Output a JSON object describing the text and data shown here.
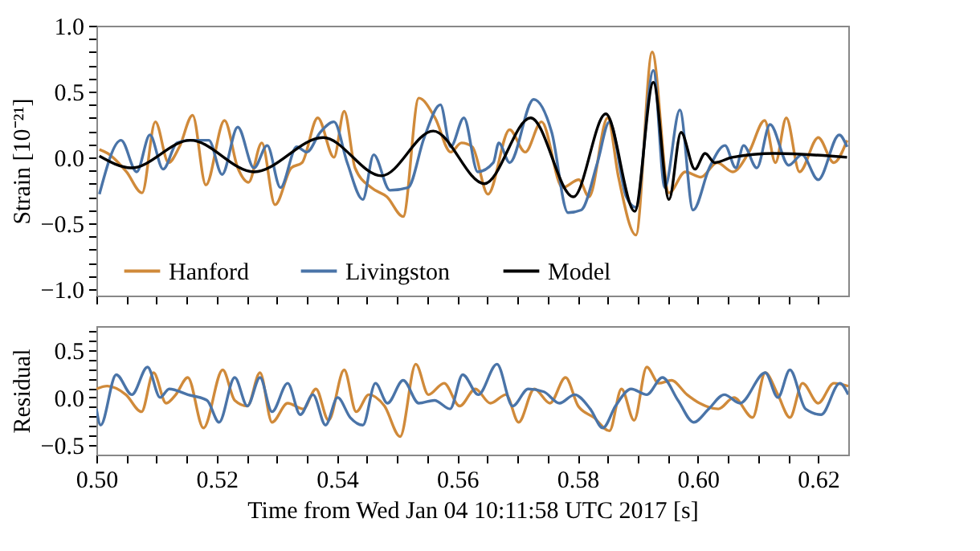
{
  "chart_data": [
    {
      "type": "line",
      "ylabel": "Strain [10⁻²¹]",
      "legend": "bottom",
      "tick_labels": "y",
      "line_style": "solid",
      "marker": "none",
      "xlim": [
        0.5,
        0.625
      ],
      "ylim": [
        -1.05,
        1.0
      ],
      "xticks": [
        {
          "value": 0.5,
          "label": null
        },
        {
          "value": 0.505,
          "label": null
        },
        {
          "value": 0.51,
          "label": null
        },
        {
          "value": 0.515,
          "label": null
        },
        {
          "value": 0.52,
          "label": null
        },
        {
          "value": 0.525,
          "label": null
        },
        {
          "value": 0.53,
          "label": null
        },
        {
          "value": 0.535,
          "label": null
        },
        {
          "value": 0.54,
          "label": null
        },
        {
          "value": 0.545,
          "label": null
        },
        {
          "value": 0.55,
          "label": null
        },
        {
          "value": 0.555,
          "label": null
        },
        {
          "value": 0.56,
          "label": null
        },
        {
          "value": 0.565,
          "label": null
        },
        {
          "value": 0.57,
          "label": null
        },
        {
          "value": 0.575,
          "label": null
        },
        {
          "value": 0.58,
          "label": null
        },
        {
          "value": 0.585,
          "label": null
        },
        {
          "value": 0.59,
          "label": null
        },
        {
          "value": 0.595,
          "label": null
        },
        {
          "value": 0.6,
          "label": null
        },
        {
          "value": 0.605,
          "label": null
        },
        {
          "value": 0.61,
          "label": null
        },
        {
          "value": 0.615,
          "label": null
        },
        {
          "value": 0.62,
          "label": null
        }
      ],
      "yticks": [
        {
          "value": -1,
          "label": "−1.0"
        },
        {
          "value": -0.9,
          "label": null
        },
        {
          "value": -0.8,
          "label": null
        },
        {
          "value": -0.7,
          "label": null
        },
        {
          "value": -0.6,
          "label": null
        },
        {
          "value": -0.5,
          "label": "−0.5"
        },
        {
          "value": -0.4,
          "label": null
        },
        {
          "value": -0.3,
          "label": null
        },
        {
          "value": -0.2,
          "label": null
        },
        {
          "value": -0.1,
          "label": null
        },
        {
          "value": 0,
          "label": "0.0"
        },
        {
          "value": 0.1,
          "label": null
        },
        {
          "value": 0.2,
          "label": null
        },
        {
          "value": 0.3,
          "label": null
        },
        {
          "value": 0.4,
          "label": null
        },
        {
          "value": 0.5,
          "label": "0.5"
        },
        {
          "value": 0.6,
          "label": null
        },
        {
          "value": 0.7,
          "label": null
        },
        {
          "value": 0.8,
          "label": null
        },
        {
          "value": 0.9,
          "label": null
        },
        {
          "value": 1,
          "label": "1.0"
        }
      ],
      "series": [
        {
          "name": "Hanford",
          "color": "#d08a3a",
          "x": [
            0.5005,
            0.5019,
            0.505,
            0.5076,
            0.5098,
            0.512,
            0.5138,
            0.516,
            0.5182,
            0.5213,
            0.5235,
            0.5253,
            0.5275,
            0.5297,
            0.5324,
            0.5342,
            0.5368,
            0.5395,
            0.5412,
            0.543,
            0.5457,
            0.5483,
            0.551,
            0.5536,
            0.5563,
            0.5589,
            0.5607,
            0.5625,
            0.5651,
            0.5687,
            0.5713,
            0.574,
            0.5775,
            0.5802,
            0.5819,
            0.585,
            0.5868,
            0.5897,
            0.5924,
            0.5952,
            0.5979,
            0.6005,
            0.6032,
            0.6058,
            0.6085,
            0.6111,
            0.6129,
            0.6147,
            0.6169,
            0.62,
            0.6226,
            0.6248
          ],
          "values": [
            0.06,
            0.03,
            -0.11,
            -0.27,
            0.27,
            -0.04,
            0.08,
            0.32,
            -0.21,
            0.28,
            -0.08,
            -0.19,
            0.11,
            -0.36,
            -0.08,
            -0.04,
            0.3,
            0,
            0.35,
            -0.08,
            -0.23,
            -0.3,
            -0.45,
            0.45,
            0.3,
            0.04,
            0.11,
            0.08,
            -0.28,
            0.21,
            0.04,
            0.27,
            -0.23,
            -0.17,
            -0.3,
            0.3,
            -0.15,
            -0.59,
            0.8,
            -0.27,
            -0.11,
            -0.15,
            -0.04,
            -0.11,
            0.04,
            0.28,
            -0.04,
            0.3,
            -0.11,
            0.15,
            -0.04,
            0.13
          ]
        },
        {
          "name": "Livingston",
          "color": "#4a74a8",
          "x": [
            0.5005,
            0.5041,
            0.5067,
            0.5089,
            0.5111,
            0.5134,
            0.5156,
            0.5187,
            0.5209,
            0.5235,
            0.5262,
            0.5284,
            0.5306,
            0.5333,
            0.535,
            0.5372,
            0.5395,
            0.5417,
            0.5443,
            0.5461,
            0.5488,
            0.5518,
            0.5545,
            0.5572,
            0.5589,
            0.5611,
            0.5634,
            0.566,
            0.5669,
            0.5687,
            0.5727,
            0.5757,
            0.5784,
            0.5806,
            0.5833,
            0.5853,
            0.5881,
            0.5897,
            0.5926,
            0.5945,
            0.597,
            0.5992,
            0.6019,
            0.6045,
            0.6063,
            0.6076,
            0.6098,
            0.612,
            0.6151,
            0.6173,
            0.62,
            0.6235,
            0.6248
          ],
          "values": [
            -0.28,
            0.13,
            -0.11,
            0.17,
            -0.09,
            0.11,
            0.13,
            0.13,
            -0.13,
            0.23,
            -0.08,
            0.09,
            -0.23,
            0.08,
            0.04,
            0.19,
            0.27,
            -0.04,
            -0.32,
            0.02,
            -0.25,
            -0.23,
            0.15,
            0.4,
            0.08,
            0.3,
            -0.11,
            -0.04,
            0.11,
            -0.04,
            0.44,
            0.19,
            -0.42,
            -0.4,
            -0.04,
            0.27,
            -0.3,
            -0.38,
            0.66,
            -0.23,
            0.36,
            -0.4,
            -0.08,
            0.09,
            -0.08,
            0.09,
            -0.08,
            0.25,
            -0.06,
            0.02,
            -0.17,
            0.17,
            0.08
          ]
        },
        {
          "name": "Model",
          "color": "#000000",
          "x": [
            0.5005,
            0.5058,
            0.5156,
            0.5262,
            0.5377,
            0.5474,
            0.556,
            0.5645,
            0.5722,
            0.5793,
            0.5847,
            0.5895,
            0.5926,
            0.5952,
            0.5972,
            0.5995,
            0.6012,
            0.6028,
            0.6057,
            0.6128,
            0.6248
          ],
          "values": [
            0.01,
            -0.08,
            0.13,
            -0.11,
            0.15,
            -0.14,
            0.2,
            -0.2,
            0.3,
            -0.3,
            0.33,
            -0.41,
            0.57,
            -0.32,
            0.19,
            -0.09,
            0.03,
            -0.04,
            0,
            0.03,
            0
          ]
        }
      ]
    },
    {
      "type": "line",
      "ylabel": "Residual",
      "xlabel": "Time from Wed Jan 04 10:11:58 UTC 2017 [s]",
      "legend": false,
      "line_style": "solid",
      "marker": "none",
      "xlim": [
        0.5,
        0.625
      ],
      "ylim": [
        -0.6,
        0.75
      ],
      "xticks": [
        {
          "value": 0.5,
          "label": "0.50"
        },
        {
          "value": 0.505,
          "label": null
        },
        {
          "value": 0.51,
          "label": null
        },
        {
          "value": 0.515,
          "label": null
        },
        {
          "value": 0.52,
          "label": "0.52"
        },
        {
          "value": 0.525,
          "label": null
        },
        {
          "value": 0.53,
          "label": null
        },
        {
          "value": 0.535,
          "label": null
        },
        {
          "value": 0.54,
          "label": "0.54"
        },
        {
          "value": 0.545,
          "label": null
        },
        {
          "value": 0.55,
          "label": null
        },
        {
          "value": 0.555,
          "label": null
        },
        {
          "value": 0.56,
          "label": "0.56"
        },
        {
          "value": 0.565,
          "label": null
        },
        {
          "value": 0.57,
          "label": null
        },
        {
          "value": 0.575,
          "label": null
        },
        {
          "value": 0.58,
          "label": "0.58"
        },
        {
          "value": 0.585,
          "label": null
        },
        {
          "value": 0.59,
          "label": null
        },
        {
          "value": 0.595,
          "label": null
        },
        {
          "value": 0.6,
          "label": "0.60"
        },
        {
          "value": 0.605,
          "label": null
        },
        {
          "value": 0.61,
          "label": null
        },
        {
          "value": 0.615,
          "label": null
        },
        {
          "value": 0.62,
          "label": "0.62"
        }
      ],
      "yticks": [
        {
          "value": -0.5,
          "label": "−0.5"
        },
        {
          "value": -0.4,
          "label": null
        },
        {
          "value": -0.3,
          "label": null
        },
        {
          "value": -0.2,
          "label": null
        },
        {
          "value": -0.1,
          "label": null
        },
        {
          "value": 0,
          "label": "0.0"
        },
        {
          "value": 0.1,
          "label": null
        },
        {
          "value": 0.2,
          "label": null
        },
        {
          "value": 0.3,
          "label": null
        },
        {
          "value": 0.4,
          "label": null
        },
        {
          "value": 0.5,
          "label": "0.5"
        },
        {
          "value": 0.6,
          "label": null
        },
        {
          "value": 0.7,
          "label": null
        }
      ],
      "series": [
        {
          "color": "#d08a3a",
          "x": [
            0.5,
            0.5018,
            0.5049,
            0.5075,
            0.5095,
            0.5116,
            0.5132,
            0.5152,
            0.5178,
            0.521,
            0.523,
            0.5251,
            0.5272,
            0.5292,
            0.5318,
            0.5344,
            0.5365,
            0.5386,
            0.5412,
            0.5432,
            0.5453,
            0.5479,
            0.5505,
            0.5531,
            0.5552,
            0.5578,
            0.5604,
            0.563,
            0.5655,
            0.5681,
            0.5702,
            0.5728,
            0.5754,
            0.578,
            0.5801,
            0.5827,
            0.5853,
            0.5873,
            0.5894,
            0.5915,
            0.5935,
            0.5956,
            0.5982,
            0.6003,
            0.6034,
            0.606,
            0.6091,
            0.6112,
            0.6133,
            0.6153,
            0.6174,
            0.62,
            0.6226,
            0.625
          ],
          "values": [
            0.09,
            0.12,
            0.03,
            -0.15,
            0.26,
            -0.06,
            0.03,
            0.21,
            -0.32,
            0.29,
            -0.03,
            -0.09,
            0.26,
            -0.26,
            -0.06,
            -0.12,
            0.09,
            -0.24,
            0.29,
            -0.15,
            0.03,
            -0.09,
            -0.41,
            0.35,
            0.03,
            0.15,
            -0.09,
            0.09,
            -0.06,
            0.03,
            -0.26,
            0.09,
            -0.06,
            0.21,
            -0.09,
            -0.21,
            -0.35,
            0.09,
            -0.24,
            0.32,
            0.15,
            0.18,
            0.03,
            -0.06,
            -0.12,
            0,
            -0.21,
            0.26,
            0.03,
            -0.21,
            0.15,
            -0.06,
            0.15,
            0.12
          ]
        },
        {
          "color": "#4a74a8",
          "x": [
            0.5,
            0.5007,
            0.5033,
            0.5059,
            0.5085,
            0.5106,
            0.5121,
            0.5152,
            0.5184,
            0.5204,
            0.523,
            0.5251,
            0.5272,
            0.5292,
            0.5318,
            0.5339,
            0.536,
            0.5381,
            0.5401,
            0.5422,
            0.5443,
            0.5464,
            0.5484,
            0.551,
            0.5536,
            0.5562,
            0.5588,
            0.5609,
            0.5635,
            0.5666,
            0.5692,
            0.5718,
            0.5744,
            0.577,
            0.5795,
            0.5821,
            0.5842,
            0.5863,
            0.5889,
            0.5915,
            0.5941,
            0.5967,
            0.5993,
            0.6018,
            0.6044,
            0.607,
            0.6112,
            0.6133,
            0.6153,
            0.6179,
            0.6205,
            0.6236,
            0.625
          ],
          "values": [
            -0.12,
            -0.29,
            0.24,
            0.03,
            0.32,
            0,
            0.09,
            0.03,
            -0.03,
            -0.26,
            0.21,
            -0.09,
            0.21,
            -0.15,
            0.15,
            -0.18,
            0.03,
            -0.29,
            0,
            -0.21,
            -0.29,
            0.15,
            -0.06,
            0.18,
            -0.06,
            -0.03,
            -0.12,
            0.24,
            0.03,
            0.35,
            -0.09,
            0.09,
            0.06,
            -0.06,
            0.03,
            -0.12,
            -0.32,
            -0.09,
            0.09,
            0.03,
            0.21,
            -0.03,
            -0.26,
            -0.12,
            0.03,
            -0.06,
            0.26,
            0,
            0.29,
            -0.12,
            -0.18,
            0.15,
            0.03
          ]
        }
      ]
    }
  ]
}
